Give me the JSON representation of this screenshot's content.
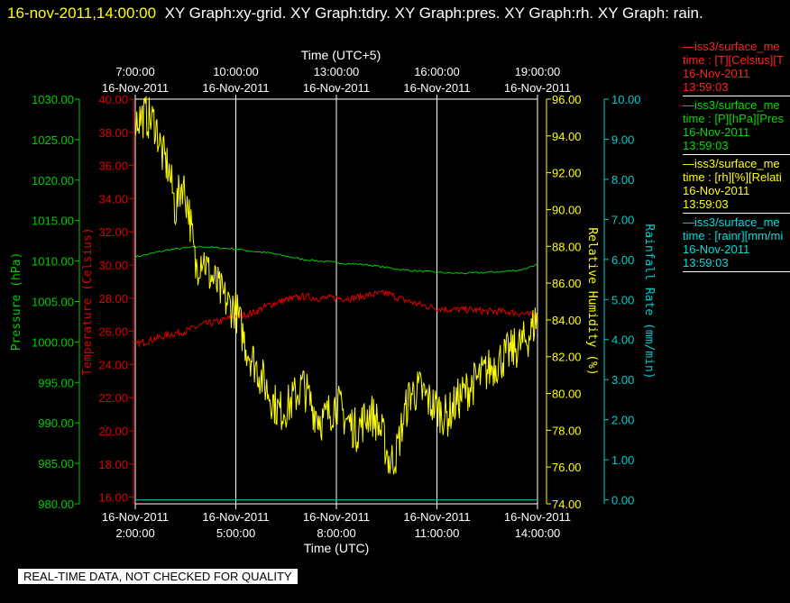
{
  "header": {
    "timestamp": "16-nov-2011,14:00:00",
    "titles": "XY Graph:xy-grid.  XY Graph:tdry.  XY Graph:pres.  XY Graph:rh.  XY Graph: rain."
  },
  "footer": "REAL-TIME DATA, NOT CHECKED FOR QUALITY",
  "colors": {
    "pressure": "#00cc00",
    "temperature": "#dd0000",
    "humidity": "#ffff00",
    "rain": "#00cccc",
    "grid": "#ffffff",
    "background": "#000000"
  },
  "legend": [
    {
      "lines": [
        "—iss3/surface_me",
        "time : [T][Celsius][T",
        "16-Nov-2011",
        "13:59:03"
      ],
      "color": "#ff2222"
    },
    {
      "lines": [
        "—iss3/surface_me",
        "time : [P][hPa][Pres",
        "16-Nov-2011",
        "13:59:03"
      ],
      "color": "#00dd00"
    },
    {
      "lines": [
        "—iss3/surface_me",
        "time : [rh][%][Relati",
        "16-Nov-2011",
        "13:59:03"
      ],
      "color": "#ffff00"
    },
    {
      "lines": [
        "—iss3/surface_me",
        "time : [rainr][mm/mi",
        "16-Nov-2011",
        "13:59:03"
      ],
      "color": "#00dddd"
    }
  ],
  "chart_data": {
    "type": "line",
    "x_bottom": {
      "title": "Time (UTC)",
      "range": [
        "16-Nov-2011 02:00:00",
        "16-Nov-2011 14:00:00"
      ],
      "ticks": [
        {
          "date": "16-Nov-2011",
          "time": "2:00:00",
          "hour": 2
        },
        {
          "date": "16-Nov-2011",
          "time": "5:00:00",
          "hour": 5
        },
        {
          "date": "16-Nov-2011",
          "time": "8:00:00",
          "hour": 8
        },
        {
          "date": "16-Nov-2011",
          "time": "11:00:00",
          "hour": 11
        },
        {
          "date": "16-Nov-2011",
          "time": "14:00:00",
          "hour": 14
        }
      ]
    },
    "x_top": {
      "title": "Time (UTC+5)",
      "ticks": [
        {
          "time": "7:00:00",
          "date": "16-Nov-2011",
          "hour": 2
        },
        {
          "time": "10:00:00",
          "date": "16-Nov-2011",
          "hour": 5
        },
        {
          "time": "13:00:00",
          "date": "16-Nov-2011",
          "hour": 8
        },
        {
          "time": "16:00:00",
          "date": "16-Nov-2011",
          "hour": 11
        },
        {
          "time": "19:00:00",
          "date": "16-Nov-2011",
          "hour": 14
        }
      ]
    },
    "grid": true,
    "axes": {
      "pressure": {
        "label": "Pressure (hPa)",
        "range": [
          980,
          1030
        ],
        "ticks": [
          "980.00",
          "985.00",
          "990.00",
          "995.00",
          "1000.00",
          "1005.00",
          "1010.00",
          "1015.00",
          "1020.00",
          "1025.00",
          "1030.00"
        ]
      },
      "temperature": {
        "label": "Temperature (Celsius)",
        "range": [
          15.6,
          40
        ],
        "ticks": [
          "16.00",
          "18.00",
          "20.00",
          "22.00",
          "24.00",
          "26.00",
          "28.00",
          "30.00",
          "32.00",
          "34.00",
          "36.00",
          "38.00",
          "40.00"
        ]
      },
      "humidity": {
        "label": "Relative Humidity (%)",
        "range": [
          74,
          96
        ],
        "ticks": [
          "74.00",
          "76.00",
          "78.00",
          "80.00",
          "82.00",
          "84.00",
          "86.00",
          "88.00",
          "90.00",
          "92.00",
          "94.00",
          "96.00"
        ]
      },
      "rain": {
        "label": "Rainfall Rate (mm/min)",
        "range": [
          -0.1,
          10
        ],
        "ticks": [
          "0.00",
          "1.00",
          "2.00",
          "3.00",
          "4.00",
          "5.00",
          "6.00",
          "7.00",
          "8.00",
          "9.00",
          "10.00"
        ]
      }
    },
    "series": [
      {
        "key": "pressure",
        "x": [
          2,
          3,
          3.5,
          4,
          4.5,
          5,
          5.5,
          6,
          7,
          8,
          9,
          10,
          11,
          11.5,
          12,
          13,
          13.5,
          14
        ],
        "values": [
          1010.5,
          1011.4,
          1011.6,
          1011.8,
          1011.6,
          1011.5,
          1011.2,
          1011.0,
          1010.2,
          1009.8,
          1009.5,
          1008.9,
          1008.6,
          1008.5,
          1008.5,
          1008.7,
          1008.9,
          1009.6
        ]
      },
      {
        "key": "temperature",
        "x": [
          2,
          2.5,
          3,
          3.5,
          4,
          4.5,
          5,
          5.5,
          6,
          6.5,
          7,
          7.5,
          8,
          8.5,
          9,
          9.5,
          10,
          10.5,
          11,
          11.5,
          12,
          12.5,
          13,
          13.5,
          14
        ],
        "values": [
          25.2,
          25.5,
          25.8,
          26.0,
          26.4,
          26.6,
          26.9,
          27.1,
          27.6,
          27.9,
          28.1,
          28.0,
          28.0,
          28.0,
          28.2,
          28.3,
          27.9,
          27.6,
          27.4,
          27.3,
          27.3,
          27.2,
          27.2,
          27.1,
          26.9
        ]
      },
      {
        "key": "humidity",
        "x": [
          2,
          2.3,
          2.6,
          2.8,
          3,
          3.2,
          3.4,
          3.6,
          3.8,
          4,
          4.2,
          4.4,
          4.6,
          4.8,
          5,
          5.3,
          5.6,
          6,
          6.3,
          6.6,
          7,
          7.3,
          7.6,
          8,
          8.3,
          8.6,
          9,
          9.2,
          9.4,
          9.6,
          9.8,
          10,
          10.2,
          10.5,
          10.8,
          11,
          11.3,
          11.6,
          12,
          12.3,
          12.6,
          13,
          13.3,
          13.6,
          13.8,
          14
        ],
        "values": [
          94.9,
          95.1,
          94.7,
          93.0,
          92.2,
          90.0,
          91.5,
          90.0,
          86.8,
          87.6,
          86.5,
          86.0,
          85.3,
          84.8,
          84.6,
          82.6,
          81.5,
          80.0,
          79.0,
          79.4,
          80.5,
          79.2,
          78.5,
          79.5,
          78.6,
          78.0,
          79.0,
          78.5,
          77.6,
          76.2,
          76.8,
          78.6,
          80.0,
          80.2,
          79.5,
          79.2,
          78.7,
          79.6,
          80.4,
          80.9,
          81.4,
          82.0,
          82.4,
          82.8,
          83.3,
          84.3
        ]
      },
      {
        "key": "rain",
        "x": [
          2,
          14
        ],
        "values": [
          0,
          0
        ]
      }
    ]
  }
}
